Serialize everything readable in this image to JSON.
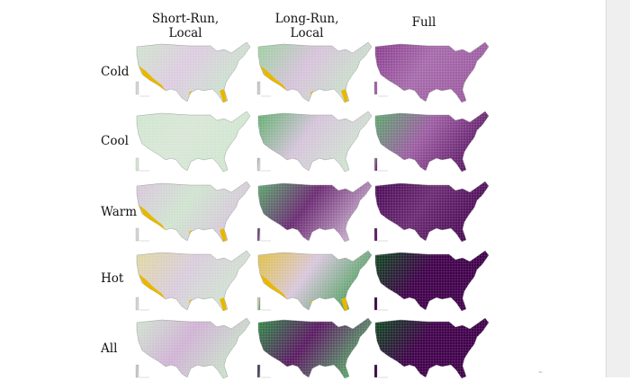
{
  "figure": {
    "columns": [
      "Short-Run,\nLocal",
      "Long-Run,\nLocal",
      "Full"
    ],
    "rows": [
      "Cold",
      "Cool",
      "Warm",
      "Hot",
      "All"
    ],
    "footer_mark": "~",
    "colors": {
      "green": "#3f9a55",
      "light_green": "#cfe8cf",
      "light_purple": "#dccbe0",
      "purple": "#8a4a90",
      "dark_purple": "#40004b",
      "dark_green": "#0b4a1c",
      "yellow": "#e8b800"
    },
    "panels": [
      [
        {
          "stops": [
            "#cfe3cc",
            "#dccbe0",
            "#c9e3cb"
          ],
          "accent": "#e8b800"
        },
        {
          "stops": [
            "#9ccf9f",
            "#d6c2da",
            "#c8e1c8"
          ],
          "accent": "#e8b800"
        },
        {
          "stops": [
            "#8a3d8e",
            "#a66aab",
            "#9b5ba0"
          ],
          "accent": null
        }
      ],
      [
        {
          "stops": [
            "#cfe6cf",
            "#d8e6d6",
            "#cfe6cf"
          ],
          "accent": null
        },
        {
          "stops": [
            "#5fae6d",
            "#d5c3da",
            "#cfe3cf"
          ],
          "accent": null
        },
        {
          "stops": [
            "#5aa86a",
            "#9c5ca2",
            "#5d1a66"
          ],
          "accent": null
        }
      ],
      [
        {
          "stops": [
            "#d8c5dc",
            "#cfe3cf",
            "#d6c5da"
          ],
          "accent": "#e8b800"
        },
        {
          "stops": [
            "#5aa86a",
            "#6a2a72",
            "#c3a6c8"
          ],
          "accent": null
        },
        {
          "stops": [
            "#4a0a55",
            "#6a2a72",
            "#4a0a55"
          ],
          "accent": null
        }
      ],
      [
        {
          "stops": [
            "#e0d7a0",
            "#d8ccdc",
            "#cfe3cf"
          ],
          "accent": "#e8b800"
        },
        {
          "stops": [
            "#e0c040",
            "#d8c6dc",
            "#4f9f5f"
          ],
          "accent": "#e8b800"
        },
        {
          "stops": [
            "#0b4a1c",
            "#40004b",
            "#40004b"
          ],
          "accent": null
        }
      ],
      [
        {
          "stops": [
            "#cfe3cf",
            "#cfb2d4",
            "#c9e0c9"
          ],
          "accent": null
        },
        {
          "stops": [
            "#2f8a45",
            "#5a1a62",
            "#5a9f68"
          ],
          "accent": null
        },
        {
          "stops": [
            "#0b4a1c",
            "#40004b",
            "#40004b"
          ],
          "accent": null
        }
      ]
    ]
  }
}
